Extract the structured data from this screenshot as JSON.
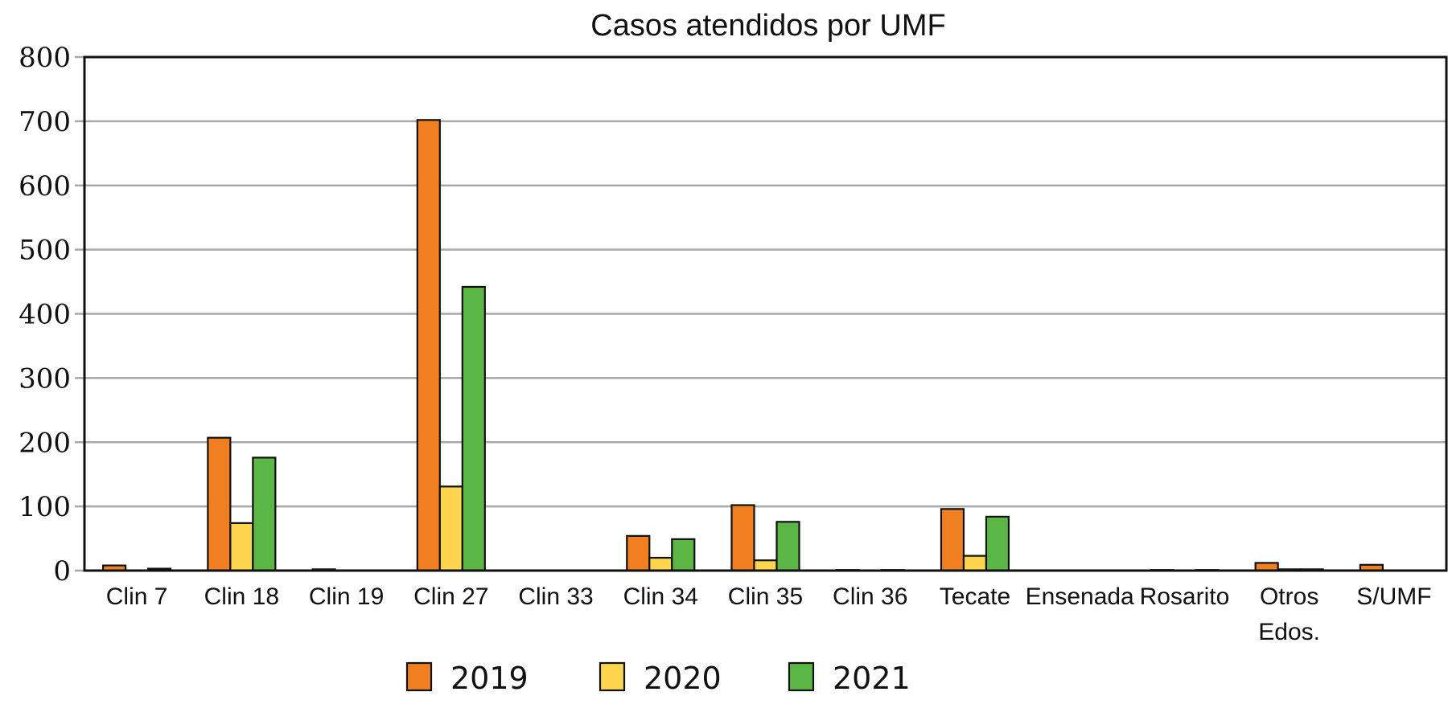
{
  "chart_data": {
    "type": "bar",
    "title": "Casos atendidos por UMF",
    "xlabel": "",
    "ylabel": "",
    "ylim": [
      0,
      800
    ],
    "yticks": [
      0,
      100,
      200,
      300,
      400,
      500,
      600,
      700,
      800
    ],
    "grid": true,
    "legend_position": "bottom-center",
    "categories": [
      "Clin 7",
      "Clin 18",
      "Clin 19",
      "Clin 27",
      "Clin 33",
      "Clin 34",
      "Clin 35",
      "Clin 36",
      "Tecate",
      "Ensenada",
      "Rosarito",
      "Otros Edos.",
      "S/UMF"
    ],
    "series": [
      {
        "name": "2019",
        "color": "#f07f22",
        "values": [
          8,
          207,
          2,
          702,
          0,
          54,
          102,
          1,
          96,
          0,
          1,
          12,
          9
        ]
      },
      {
        "name": "2020",
        "color": "#fdd54e",
        "values": [
          0,
          74,
          0,
          131,
          0,
          20,
          16,
          0,
          23,
          0,
          0,
          2,
          0
        ]
      },
      {
        "name": "2021",
        "color": "#5bb646",
        "values": [
          3,
          176,
          0,
          442,
          0,
          49,
          76,
          1,
          84,
          0,
          1,
          2,
          0
        ]
      }
    ]
  }
}
